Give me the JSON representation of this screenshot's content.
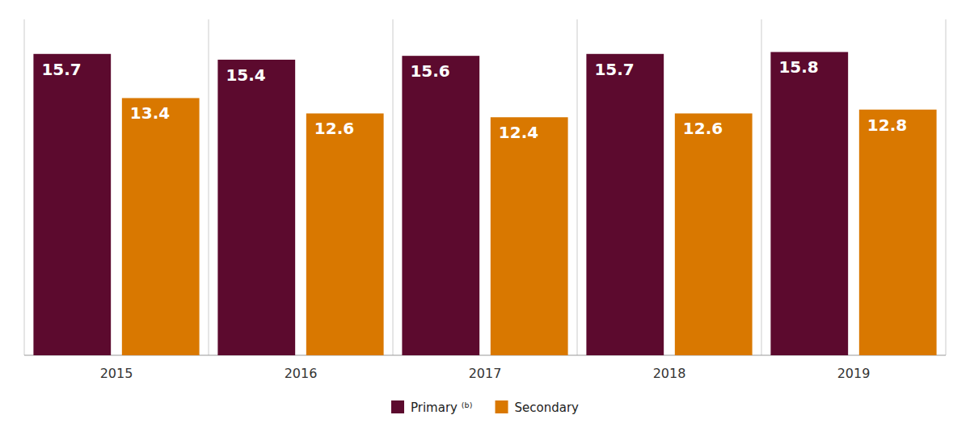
{
  "chart_data": {
    "type": "bar",
    "categories": [
      "2015",
      "2016",
      "2017",
      "2018",
      "2019"
    ],
    "series": [
      {
        "name": "Primary ⁽ᵇ⁾",
        "color": "#5C0A2E",
        "values": [
          15.7,
          15.4,
          15.6,
          15.7,
          15.8
        ]
      },
      {
        "name": "Secondary",
        "color": "#D97800",
        "values": [
          13.4,
          12.6,
          12.4,
          12.6,
          12.8
        ]
      }
    ],
    "ylim": [
      0,
      17.5
    ],
    "grid": false,
    "legend": "bottom",
    "data_labels": true,
    "tick_labels": "x"
  }
}
